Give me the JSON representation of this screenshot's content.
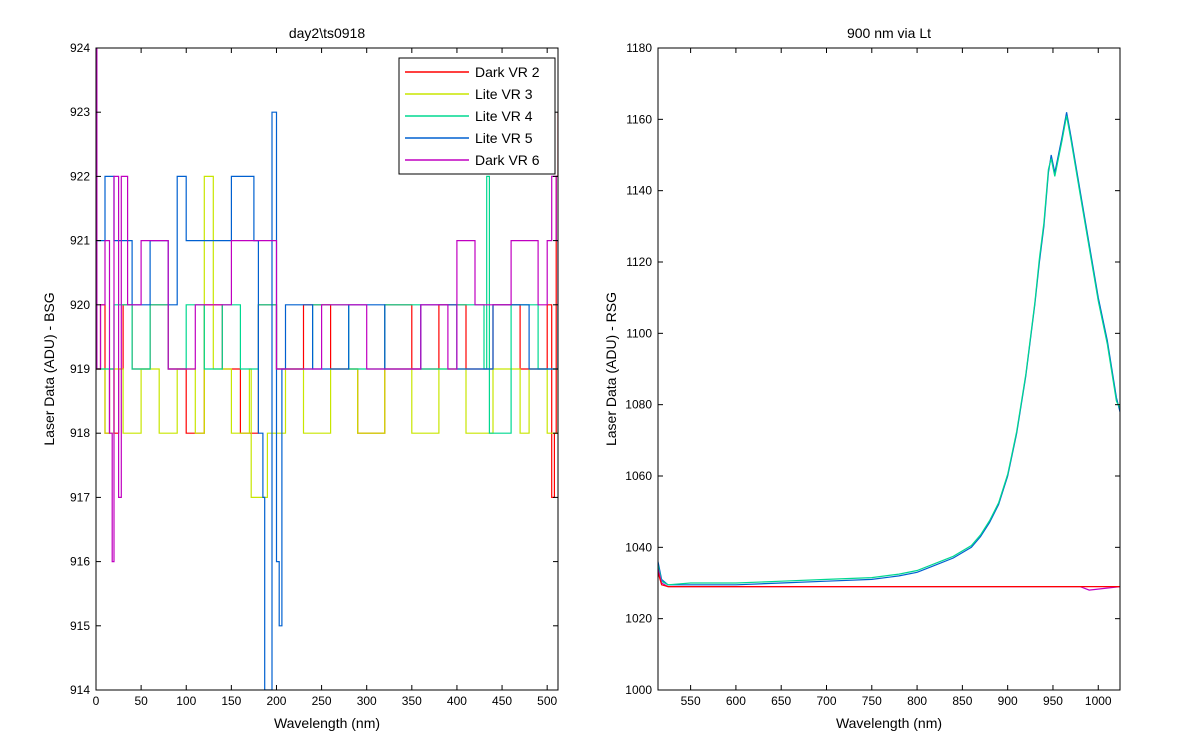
{
  "chart_data": [
    {
      "type": "line",
      "title": "day2\\ts0918",
      "xlabel": "Wavelength (nm)",
      "ylabel": "Laser Data (ADU) - BSG",
      "xlim": [
        0,
        512
      ],
      "ylim": [
        914,
        924
      ],
      "xticks": [
        0,
        50,
        100,
        150,
        200,
        250,
        300,
        350,
        400,
        450,
        500
      ],
      "yticks": [
        914,
        915,
        916,
        917,
        918,
        919,
        920,
        921,
        922,
        923,
        924
      ],
      "grid": false,
      "legend_position": "top-right",
      "series": [
        {
          "name": "Dark VR 2",
          "color": "#ff0000",
          "x": [
            0,
            5,
            10,
            15,
            20,
            25,
            30,
            40,
            60,
            80,
            100,
            120,
            140,
            160,
            180,
            200,
            230,
            260,
            290,
            320,
            350,
            380,
            410,
            440,
            470,
            500,
            505,
            508,
            510,
            512
          ],
          "y": [
            919,
            920,
            918,
            919,
            918,
            919,
            920,
            919,
            920,
            919,
            918,
            920,
            919,
            918,
            920,
            919,
            920,
            919,
            918,
            920,
            919,
            920,
            919,
            920,
            919,
            920,
            917,
            918,
            922,
            923
          ]
        },
        {
          "name": "Lite VR 3",
          "color": "#c8e600",
          "x": [
            0,
            10,
            20,
            30,
            50,
            70,
            90,
            110,
            120,
            130,
            150,
            170,
            172,
            190,
            210,
            230,
            260,
            290,
            320,
            350,
            380,
            410,
            440,
            470,
            480,
            500,
            512
          ],
          "y": [
            919,
            918,
            919,
            918,
            919,
            918,
            919,
            918,
            922,
            919,
            918,
            919,
            917,
            918,
            919,
            918,
            919,
            918,
            919,
            918,
            919,
            918,
            919,
            918,
            919,
            918,
            919
          ]
        },
        {
          "name": "Lite VR 4",
          "color": "#00d890",
          "x": [
            0,
            20,
            40,
            60,
            80,
            100,
            120,
            140,
            160,
            180,
            200,
            240,
            280,
            320,
            360,
            400,
            430,
            433,
            436,
            460,
            490,
            512
          ],
          "y": [
            919,
            920,
            919,
            920,
            919,
            920,
            919,
            920,
            919,
            920,
            919,
            920,
            919,
            920,
            919,
            920,
            919,
            922,
            918,
            920,
            919,
            920
          ]
        },
        {
          "name": "Lite VR 5",
          "color": "#0060d0",
          "x": [
            0,
            10,
            20,
            40,
            60,
            80,
            90,
            100,
            130,
            150,
            175,
            180,
            185,
            187,
            195,
            200,
            203,
            206,
            210,
            240,
            280,
            320,
            360,
            400,
            440,
            480,
            512
          ],
          "y": [
            921,
            922,
            921,
            920,
            921,
            920,
            922,
            921,
            921,
            922,
            921,
            918,
            917,
            914,
            923,
            916,
            915,
            919,
            920,
            919,
            920,
            919,
            920,
            919,
            920,
            919,
            920
          ]
        },
        {
          "name": "Dark VR 6",
          "color": "#c000c0",
          "x": [
            0,
            1,
            5,
            10,
            15,
            18,
            20,
            25,
            28,
            35,
            50,
            80,
            110,
            150,
            200,
            250,
            300,
            360,
            390,
            400,
            420,
            460,
            490,
            500,
            505,
            510,
            512
          ],
          "y": [
            924,
            919,
            920,
            921,
            918,
            916,
            922,
            917,
            922,
            920,
            921,
            919,
            920,
            921,
            919,
            920,
            919,
            920,
            919,
            921,
            920,
            921,
            920,
            921,
            922,
            921,
            920
          ]
        }
      ]
    },
    {
      "type": "line",
      "title": "900 nm via Lt",
      "xlabel": "Wavelength (nm)",
      "ylabel": "Laser Data (ADU) - RSG",
      "xlim": [
        514,
        1024
      ],
      "ylim": [
        1000,
        1180
      ],
      "xticks": [
        550,
        600,
        650,
        700,
        750,
        800,
        850,
        900,
        950,
        1000
      ],
      "yticks": [
        1000,
        1020,
        1040,
        1060,
        1080,
        1100,
        1120,
        1140,
        1160,
        1180
      ],
      "grid": false,
      "series": [
        {
          "color": "#0060d0",
          "x": [
            514,
            518,
            525,
            550,
            600,
            650,
            700,
            750,
            780,
            800,
            820,
            840,
            860,
            870,
            880,
            890,
            900,
            910,
            920,
            930,
            935,
            940,
            945,
            948,
            952,
            960,
            965,
            970,
            980,
            990,
            1000,
            1010,
            1020,
            1024
          ],
          "y": [
            1036,
            1031,
            1029.5,
            1029.5,
            1029.5,
            1030,
            1030.5,
            1031,
            1032,
            1033,
            1035,
            1037,
            1040,
            1043,
            1047,
            1052,
            1060,
            1072,
            1088,
            1108,
            1120,
            1130,
            1145,
            1150,
            1145,
            1155,
            1162,
            1155,
            1140,
            1125,
            1110,
            1098,
            1082,
            1078
          ]
        },
        {
          "color": "#00d890",
          "x": [
            514,
            518,
            525,
            550,
            600,
            650,
            700,
            750,
            780,
            800,
            820,
            840,
            860,
            870,
            880,
            890,
            900,
            910,
            920,
            930,
            935,
            940,
            945,
            948,
            952,
            960,
            965,
            970,
            980,
            990,
            1000,
            1010,
            1020,
            1024
          ],
          "y": [
            1035,
            1030.5,
            1029.5,
            1030,
            1030,
            1030.5,
            1031,
            1031.5,
            1032.5,
            1033.5,
            1035.5,
            1037.5,
            1040.5,
            1043.5,
            1047.5,
            1052.5,
            1060.5,
            1072.5,
            1088.5,
            1108.5,
            1121,
            1131,
            1146,
            1149,
            1144,
            1154,
            1161,
            1154,
            1139,
            1124,
            1109,
            1097,
            1081,
            1079
          ]
        },
        {
          "color": "#c000c0",
          "x": [
            514,
            518,
            525,
            600,
            700,
            800,
            900,
            980,
            990,
            1024
          ],
          "y": [
            1034,
            1030,
            1029,
            1029,
            1029,
            1029,
            1029,
            1029,
            1028,
            1029
          ]
        },
        {
          "color": "#ff0000",
          "x": [
            514,
            518,
            525,
            600,
            700,
            800,
            900,
            1024
          ],
          "y": [
            1033,
            1029.5,
            1029,
            1029,
            1029,
            1029,
            1029,
            1029
          ]
        }
      ]
    }
  ]
}
